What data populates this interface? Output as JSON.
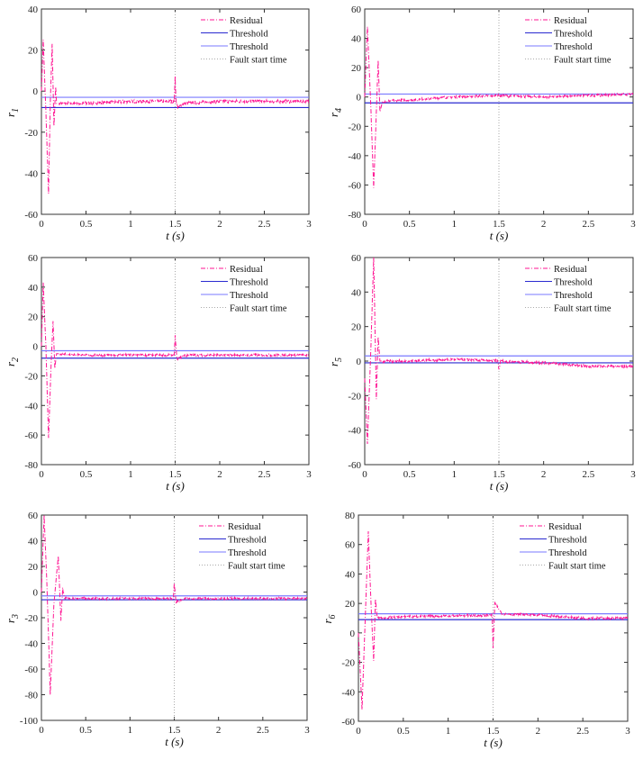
{
  "chart_data": [
    {
      "type": "line",
      "ylabel": "r",
      "ysub": "1",
      "xlabel": "t (s)",
      "xlim": [
        0,
        3
      ],
      "ylim": [
        -60,
        40
      ],
      "ystep": 20,
      "xticks": [
        "0",
        "0.5",
        "1",
        "1.5",
        "2",
        "2.5",
        "3"
      ],
      "thresholds": [
        -3,
        -8
      ],
      "fault_time": 1.5,
      "legend": [
        "Residual",
        "Threshold",
        "Threshold",
        "Fault start time"
      ],
      "residual": [
        [
          0,
          0
        ],
        [
          0.02,
          25
        ],
        [
          0.05,
          -10
        ],
        [
          0.08,
          -50
        ],
        [
          0.1,
          -5
        ],
        [
          0.12,
          23
        ],
        [
          0.14,
          -17
        ],
        [
          0.16,
          2
        ],
        [
          0.17,
          -6
        ],
        [
          0.5,
          -6
        ],
        [
          1,
          -5
        ],
        [
          1.49,
          -5
        ],
        [
          1.5,
          7
        ],
        [
          1.51,
          -5
        ],
        [
          1.53,
          -8
        ],
        [
          1.6,
          -6
        ],
        [
          2,
          -5
        ],
        [
          3,
          -5
        ]
      ]
    },
    {
      "type": "line",
      "ylabel": "r",
      "ysub": "4",
      "xlabel": "t (s)",
      "xlim": [
        0,
        3
      ],
      "ylim": [
        -80,
        60
      ],
      "ystep": 20,
      "xticks": [
        "0",
        "0.5",
        "1",
        "1.5",
        "2",
        "2.5",
        "3"
      ],
      "thresholds": [
        2,
        -4
      ],
      "fault_time": 1.5,
      "legend": [
        "Residual",
        "Threshold",
        "Threshold",
        "Fault start time"
      ],
      "residual": [
        [
          0,
          0
        ],
        [
          0.03,
          48
        ],
        [
          0.07,
          -10
        ],
        [
          0.1,
          -62
        ],
        [
          0.13,
          -10
        ],
        [
          0.15,
          25
        ],
        [
          0.17,
          -10
        ],
        [
          0.2,
          -3
        ],
        [
          0.5,
          -2
        ],
        [
          1,
          0
        ],
        [
          1.5,
          1
        ],
        [
          2,
          0
        ],
        [
          2.5,
          1
        ],
        [
          3,
          2
        ]
      ]
    },
    {
      "type": "line",
      "ylabel": "r",
      "ysub": "2",
      "xlabel": "t (s)",
      "xlim": [
        0,
        3
      ],
      "ylim": [
        -80,
        60
      ],
      "ystep": 20,
      "xticks": [
        "0",
        "0.5",
        "1",
        "1.5",
        "2",
        "2.5",
        "3"
      ],
      "thresholds": [
        -3,
        -8
      ],
      "fault_time": 1.5,
      "legend": [
        "Residual",
        "Threshold",
        "Threshold",
        "Fault start time"
      ],
      "residual": [
        [
          0,
          0
        ],
        [
          0.02,
          43
        ],
        [
          0.05,
          0
        ],
        [
          0.08,
          -62
        ],
        [
          0.11,
          -10
        ],
        [
          0.13,
          17
        ],
        [
          0.15,
          -15
        ],
        [
          0.17,
          -5
        ],
        [
          0.5,
          -6
        ],
        [
          1.49,
          -6
        ],
        [
          1.5,
          7
        ],
        [
          1.52,
          -9
        ],
        [
          1.6,
          -6
        ],
        [
          3,
          -6
        ]
      ]
    },
    {
      "type": "line",
      "ylabel": "r",
      "ysub": "5",
      "xlabel": "t (s)",
      "xlim": [
        0,
        3
      ],
      "ylim": [
        -60,
        60
      ],
      "ystep": 20,
      "xticks": [
        "0",
        "0.5",
        "1",
        "1.5",
        "2",
        "2.5",
        "3"
      ],
      "thresholds": [
        3,
        -1
      ],
      "fault_time": 1.5,
      "legend": [
        "Residual",
        "Threshold",
        "Threshold",
        "Fault start time"
      ],
      "residual": [
        [
          0,
          -10
        ],
        [
          0.03,
          -48
        ],
        [
          0.07,
          10
        ],
        [
          0.1,
          60
        ],
        [
          0.13,
          -22
        ],
        [
          0.15,
          14
        ],
        [
          0.17,
          0
        ],
        [
          0.5,
          0
        ],
        [
          1,
          1
        ],
        [
          1.49,
          0
        ],
        [
          1.5,
          -5
        ],
        [
          1.52,
          0
        ],
        [
          2,
          -1
        ],
        [
          2.5,
          -3
        ],
        [
          3,
          -3
        ]
      ]
    },
    {
      "type": "line",
      "ylabel": "r",
      "ysub": "3",
      "xlabel": "t (s)",
      "xlim": [
        0,
        3
      ],
      "ylim": [
        -100,
        60
      ],
      "ystep": 20,
      "xticks": [
        "0",
        "0.5",
        "1",
        "1.5",
        "2",
        "2.5",
        "3"
      ],
      "thresholds": [
        -3,
        -6
      ],
      "fault_time": 1.5,
      "legend": [
        "Residual",
        "Threshold",
        "Threshold",
        "Fault start time"
      ],
      "residual": [
        [
          0,
          0
        ],
        [
          0.03,
          60
        ],
        [
          0.06,
          10
        ],
        [
          0.1,
          -80
        ],
        [
          0.14,
          -10
        ],
        [
          0.19,
          28
        ],
        [
          0.22,
          -22
        ],
        [
          0.24,
          3
        ],
        [
          0.26,
          -5
        ],
        [
          1.49,
          -5
        ],
        [
          1.5,
          7
        ],
        [
          1.52,
          -8
        ],
        [
          1.6,
          -5
        ],
        [
          3,
          -5
        ]
      ]
    },
    {
      "type": "line",
      "ylabel": "r",
      "ysub": "6",
      "xlabel": "t (s)",
      "xlim": [
        0,
        3
      ],
      "ylim": [
        -60,
        80
      ],
      "ystep": 20,
      "xticks": [
        "0",
        "0.5",
        "1",
        "1.5",
        "2",
        "2.5",
        "3"
      ],
      "thresholds": [
        13,
        9
      ],
      "fault_time": 1.5,
      "legend": [
        "Residual",
        "Threshold",
        "Threshold",
        "Fault start time"
      ],
      "residual": [
        [
          0,
          0
        ],
        [
          0.04,
          -52
        ],
        [
          0.07,
          0
        ],
        [
          0.11,
          69
        ],
        [
          0.14,
          20
        ],
        [
          0.17,
          -19
        ],
        [
          0.19,
          23
        ],
        [
          0.21,
          10
        ],
        [
          0.5,
          11
        ],
        [
          1.49,
          12
        ],
        [
          1.5,
          -10
        ],
        [
          1.52,
          20
        ],
        [
          1.6,
          13
        ],
        [
          2,
          12
        ],
        [
          2.5,
          10
        ],
        [
          3,
          10
        ]
      ]
    }
  ],
  "colors": {
    "residual": "#ff1493",
    "threshold_dark": "#2a2ad0",
    "threshold_light": "#7a7aff",
    "fault": "#aaaaaa",
    "axis": "#333333"
  }
}
